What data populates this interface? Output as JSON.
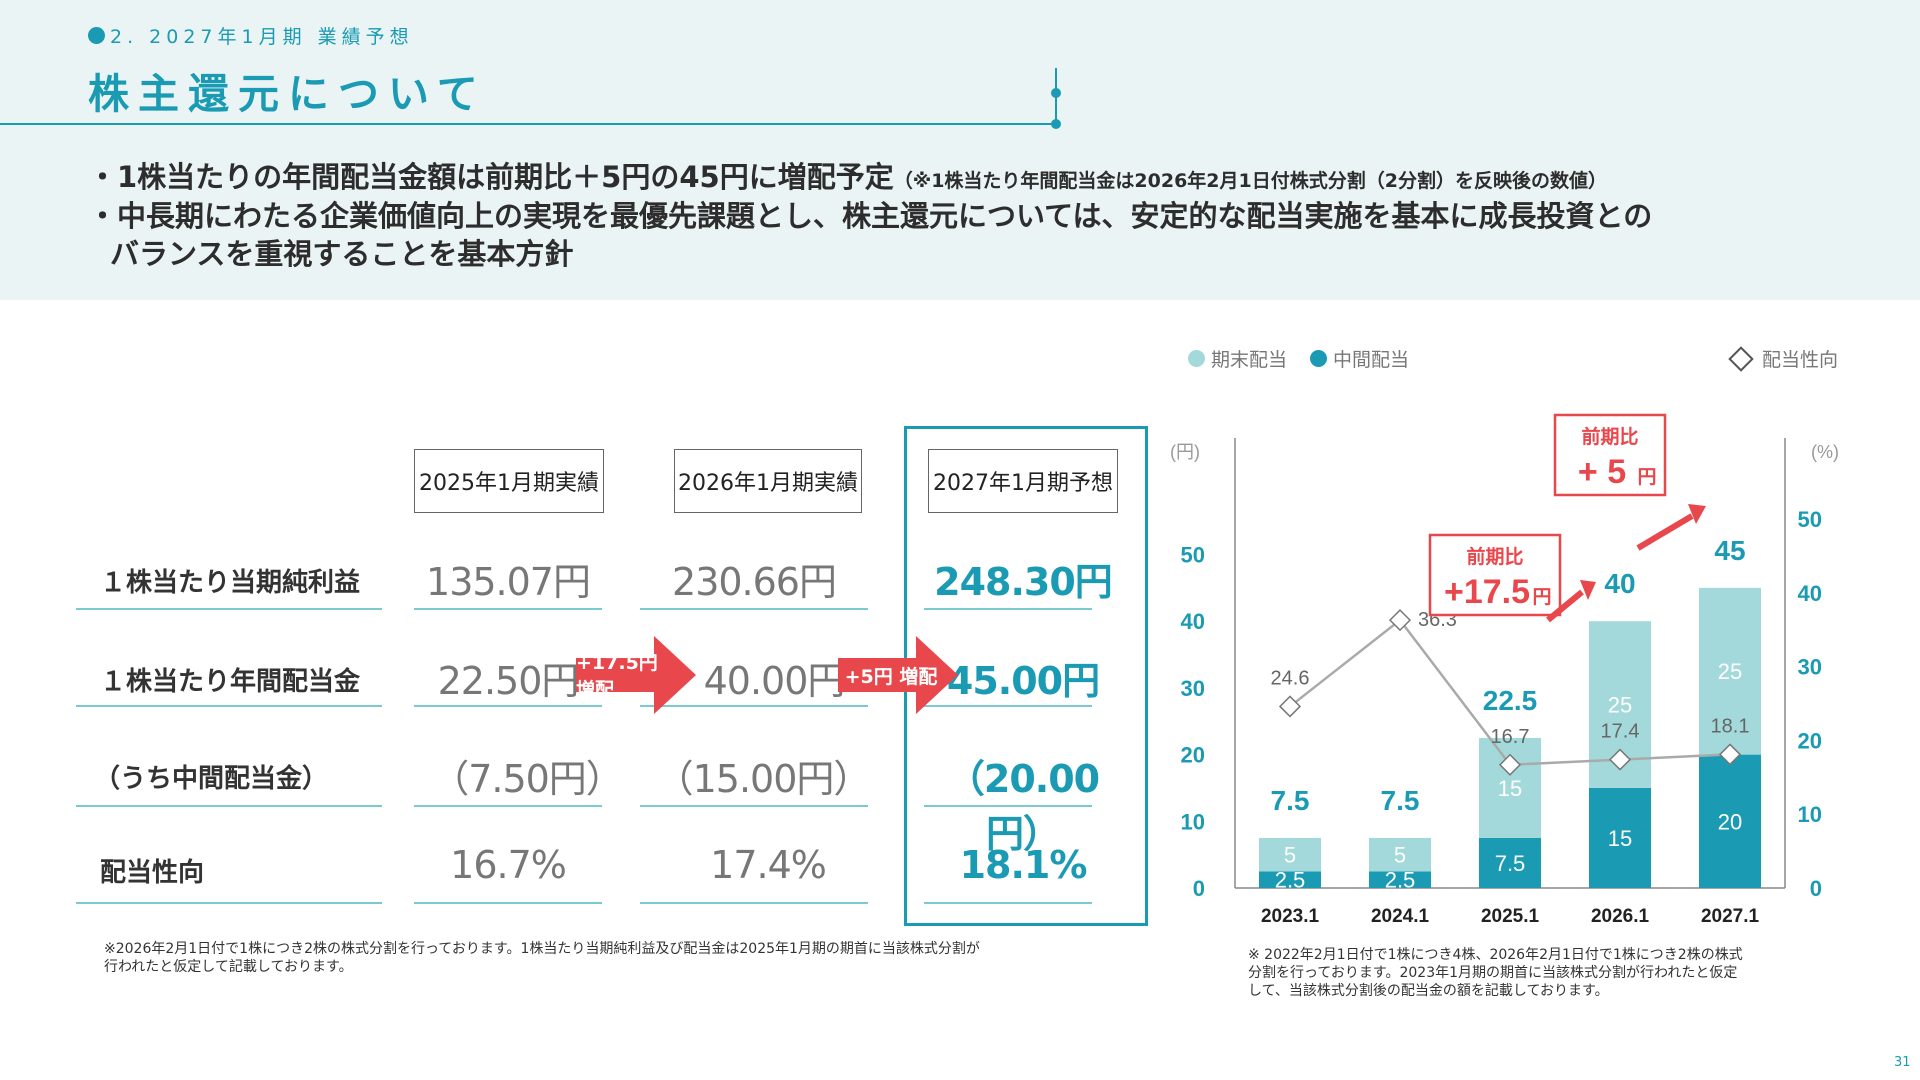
{
  "header": {
    "section_label": "2. 2027年1月期 業績予想",
    "title": "株主還元について"
  },
  "bullets": {
    "b1_main": "・1株当たりの年間配当金額は前期比＋5円の45円に増配予定",
    "b1_note": "（※1株当たり年間配当金は2026年2月1日付株式分割（2分割）を反映後の数値）",
    "b2": "・中長期にわたる企業価値向上の実現を最優先課題とし、株主還元については、安定的な配当実施を基本に成長投資との",
    "b3": "バランスを重視することを基本方針"
  },
  "table": {
    "col_headers": [
      "2025年1月期実績",
      "2026年1月期実績",
      "2027年1月期予想"
    ],
    "row_labels": [
      "１株当たり当期純利益",
      "１株当たり年間配当金",
      "（うち中間配当金）",
      "配当性向"
    ],
    "rows": [
      [
        "135.07円",
        "230.66円",
        "248.30円"
      ],
      [
        "22.50円",
        "40.00円",
        "45.00円"
      ],
      [
        "（7.50円）",
        "（15.00円）",
        "（20.00円）"
      ],
      [
        "16.7%",
        "17.4%",
        "18.1%"
      ]
    ],
    "arrow1": "+17.5円 増配",
    "arrow2": "+5円 増配",
    "footnote_line1": "※2026年2月1日付で1株につき2株の株式分割を行っております。1株当たり当期純利益及び配当金は2025年1月期の期首に当該株式分割が",
    "footnote_line2": "行われたと仮定して記載しております。"
  },
  "legend": {
    "end": "期末配当",
    "interim": "中間配当",
    "payout": "配当性向"
  },
  "callouts": {
    "c1_top": "前期比",
    "c1_value": "+17.5",
    "c1_unit": "円",
    "c2_top": "前期比",
    "c2_value": "+ 5",
    "c2_unit": "円"
  },
  "chart_note": {
    "line1": "※ 2022年2月1日付で1株につき4株、2026年2月1日付で1株につき2株の株式",
    "line2": "分割を行っております。2023年1月期の期首に当該株式分割が行われたと仮定",
    "line3": "して、当該株式分割後の配当金の額を記載しております。"
  },
  "chart_data": {
    "type": "bar",
    "categories": [
      "2023.1",
      "2024.1",
      "2025.1",
      "2026.1",
      "2027.1"
    ],
    "series": [
      {
        "name": "中間配当",
        "values": [
          2.5,
          2.5,
          7.5,
          15,
          20
        ],
        "color": "#1a9bb3"
      },
      {
        "name": "期末配当",
        "values": [
          5,
          5,
          15,
          25,
          25
        ],
        "color": "#a3d9da"
      }
    ],
    "totals": [
      7.5,
      7.5,
      22.5,
      40,
      45
    ],
    "payout_ratio": {
      "name": "配当性向",
      "values": [
        24.6,
        36.3,
        16.7,
        17.4,
        18.1
      ]
    },
    "y_left": {
      "label": "(円)",
      "ticks": [
        0,
        10,
        20,
        30,
        40,
        50
      ],
      "range": [
        0,
        50
      ]
    },
    "y_right": {
      "label": "(%)",
      "ticks": [
        0,
        10,
        20,
        30,
        40,
        50
      ],
      "range": [
        0,
        60
      ]
    },
    "stacked": true
  },
  "page_number": "31",
  "colors": {
    "accent": "#1a9bb3",
    "light": "#a3d9da",
    "red": "#e8474c"
  }
}
